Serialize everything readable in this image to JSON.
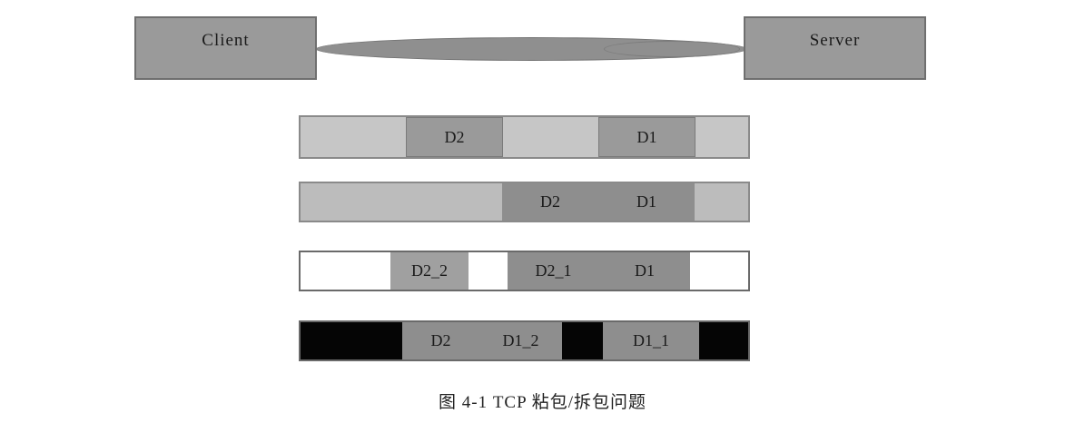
{
  "nodes": {
    "client": "Client",
    "server": "Server"
  },
  "rows": [
    {
      "segments": [
        "D2",
        "D1"
      ]
    },
    {
      "segments": [
        "D2",
        "D1"
      ]
    },
    {
      "segments": [
        "D2_2",
        "D2_1",
        "D1"
      ]
    },
    {
      "segments": [
        "D2",
        "D1_2",
        "D1_1"
      ]
    }
  ],
  "caption": "图 4-1   TCP 粘包/拆包问题",
  "colors": {
    "node_fill": "#9a9a9a",
    "packet_fill": "#8e8e8e",
    "row1_bg": "#c6c6c6",
    "row2_bg": "#bcbcbc",
    "row3_bg": "#ffffff",
    "row4_bg": "#050505"
  }
}
